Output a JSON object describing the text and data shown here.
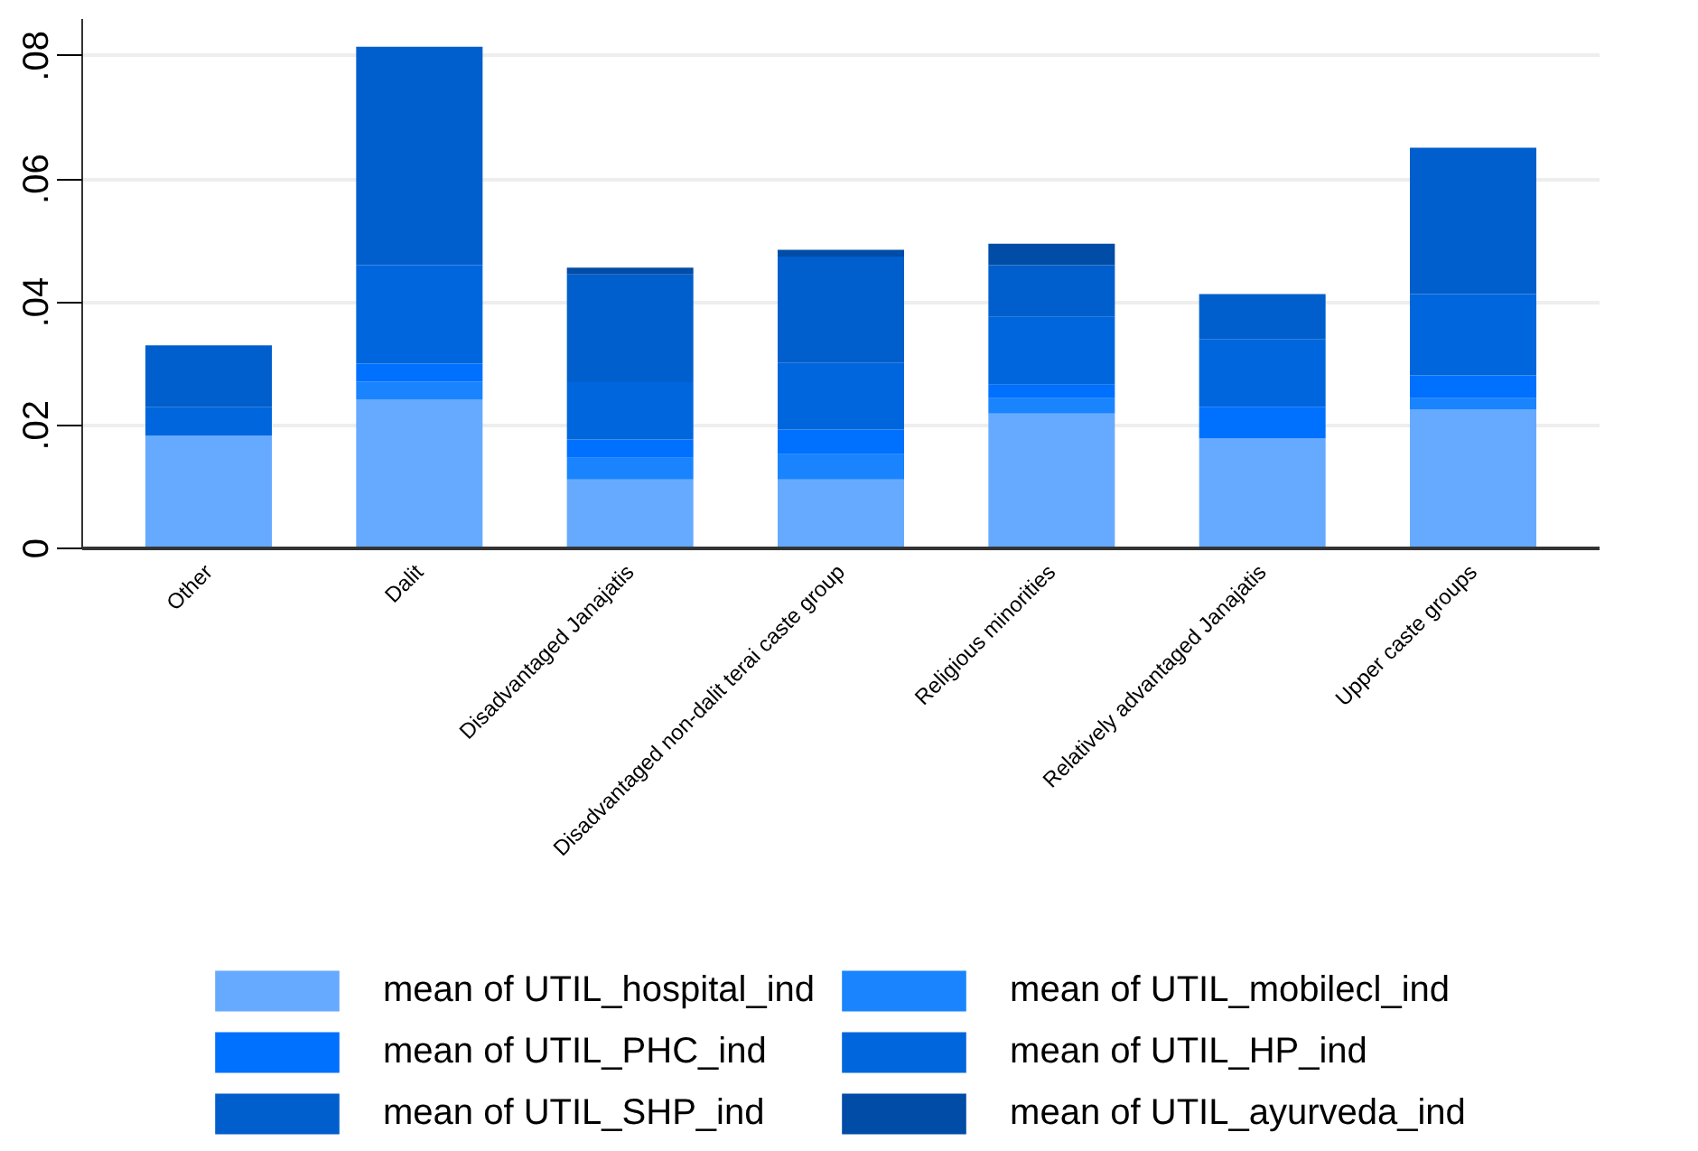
{
  "chart_data": {
    "type": "bar",
    "stacked": true,
    "categories": [
      "Other",
      "Dalit",
      "Disadvantaged Janajatis",
      "Disadvantaged non-dalit terai caste group",
      "Religious minorities",
      "Relatively advantaged Janajatis",
      "Upper caste groups"
    ],
    "series": [
      {
        "name": "mean of UTIL_hospital_ind",
        "color": "#66aaff",
        "values": [
          0.0183,
          0.0242,
          0.0112,
          0.0112,
          0.0219,
          0.0179,
          0.0226
        ]
      },
      {
        "name": "mean of UTIL_mobilecl_ind",
        "color": "#1a84ff",
        "values": [
          0,
          0.0029,
          0.0035,
          0.0041,
          0.0025,
          0,
          0.0018
        ]
      },
      {
        "name": "mean of UTIL_PHC_ind",
        "color": "#0070ff",
        "values": [
          0,
          0.0029,
          0.003,
          0.004,
          0.0022,
          0.0051,
          0.0037
        ]
      },
      {
        "name": "mean of UTIL_HP_ind",
        "color": "#0066dd",
        "values": [
          0.0047,
          0.016,
          0.0093,
          0.0109,
          0.011,
          0.011,
          0.0132
        ]
      },
      {
        "name": "mean of UTIL_SHP_ind",
        "color": "#005fcc",
        "values": [
          0.01,
          0.0355,
          0.0175,
          0.0172,
          0.0084,
          0.0073,
          0.0238
        ]
      },
      {
        "name": "mean of UTIL_ayurveda_ind",
        "color": "#004ca6",
        "values": [
          0,
          0,
          0.0011,
          0.0011,
          0.0035,
          0,
          0
        ]
      }
    ],
    "ylim": [
      0,
      0.086
    ],
    "yticks": [
      {
        "value": 0,
        "label": "0"
      },
      {
        "value": 0.02,
        "label": ".02"
      },
      {
        "value": 0.04,
        "label": ".04"
      },
      {
        "value": 0.06,
        "label": ".06"
      },
      {
        "value": 0.08,
        "label": ".08"
      }
    ],
    "grid": "y",
    "legend": "bottom"
  }
}
